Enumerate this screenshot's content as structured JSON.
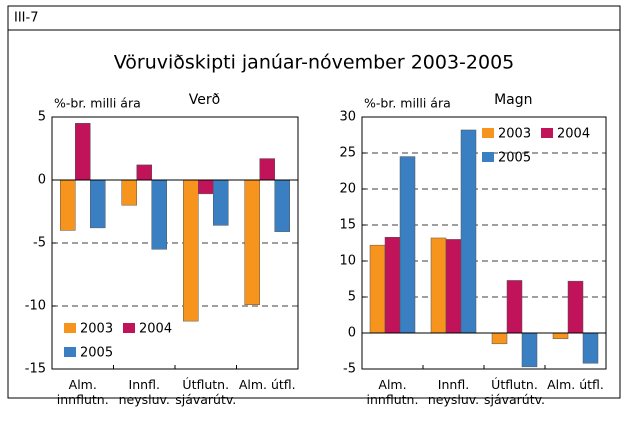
{
  "header": "III-7",
  "title": "Vöruviðskipti janúar-nóvember 2003-2005",
  "chart_data": [
    {
      "type": "bar",
      "subtitle": "Verð",
      "ylabel": "%-br. milli ára",
      "categories": [
        "Alm. innflutn.",
        "Innfl. neysluv.",
        "Útflutn. sjávarútv.",
        "Alm. útfl."
      ],
      "series": [
        {
          "name": "2003",
          "color": "#f7941d",
          "values": [
            -4.0,
            -2.0,
            -11.2,
            -9.9
          ]
        },
        {
          "name": "2004",
          "color": "#c0135a",
          "values": [
            4.5,
            1.2,
            -1.1,
            1.7
          ]
        },
        {
          "name": "2005",
          "color": "#3a7fc1",
          "values": [
            -3.8,
            -5.5,
            -3.6,
            -4.1
          ]
        }
      ],
      "ylim": [
        -15,
        5
      ],
      "yticks": [
        -15,
        -10,
        -5,
        0,
        5
      ],
      "grid": true,
      "legend": "lower left"
    },
    {
      "type": "bar",
      "subtitle": "Magn",
      "ylabel": "%-br. milli ára",
      "categories": [
        "Alm. innflutn.",
        "Innfl. neysluv.",
        "Útflutn. sjávarútv.",
        "Alm. útfl."
      ],
      "series": [
        {
          "name": "2003",
          "color": "#f7941d",
          "values": [
            12.2,
            13.2,
            -1.5,
            -0.8
          ]
        },
        {
          "name": "2004",
          "color": "#c0135a",
          "values": [
            13.3,
            13.0,
            7.3,
            7.2
          ]
        },
        {
          "name": "2005",
          "color": "#3a7fc1",
          "values": [
            24.5,
            28.2,
            -4.7,
            -4.2
          ]
        }
      ],
      "ylim": [
        -5,
        30
      ],
      "yticks": [
        -5,
        0,
        5,
        10,
        15,
        20,
        25,
        30
      ],
      "grid": true,
      "legend": "upper right"
    }
  ]
}
